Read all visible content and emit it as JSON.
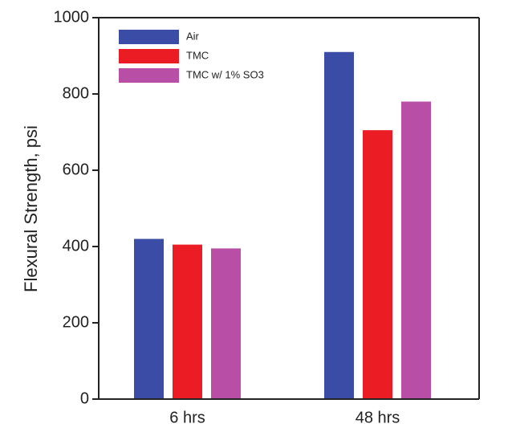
{
  "chart_data": {
    "type": "bar",
    "y_label": "Flexural Strength, psi",
    "categories": [
      "6 hrs",
      "48 hrs"
    ],
    "series": [
      {
        "name": "Air",
        "color": "#3a4ca5",
        "values": [
          420,
          910
        ]
      },
      {
        "name": "TMC",
        "color": "#ec1c24",
        "values": [
          405,
          705
        ]
      },
      {
        "name": "TMC w/ 1% SO3",
        "color": "#b84ea5",
        "values": [
          395,
          780
        ]
      }
    ],
    "ylim": [
      0,
      1000
    ],
    "yticks": [
      0,
      200,
      400,
      600,
      800,
      1000
    ],
    "legend": "upper left"
  }
}
